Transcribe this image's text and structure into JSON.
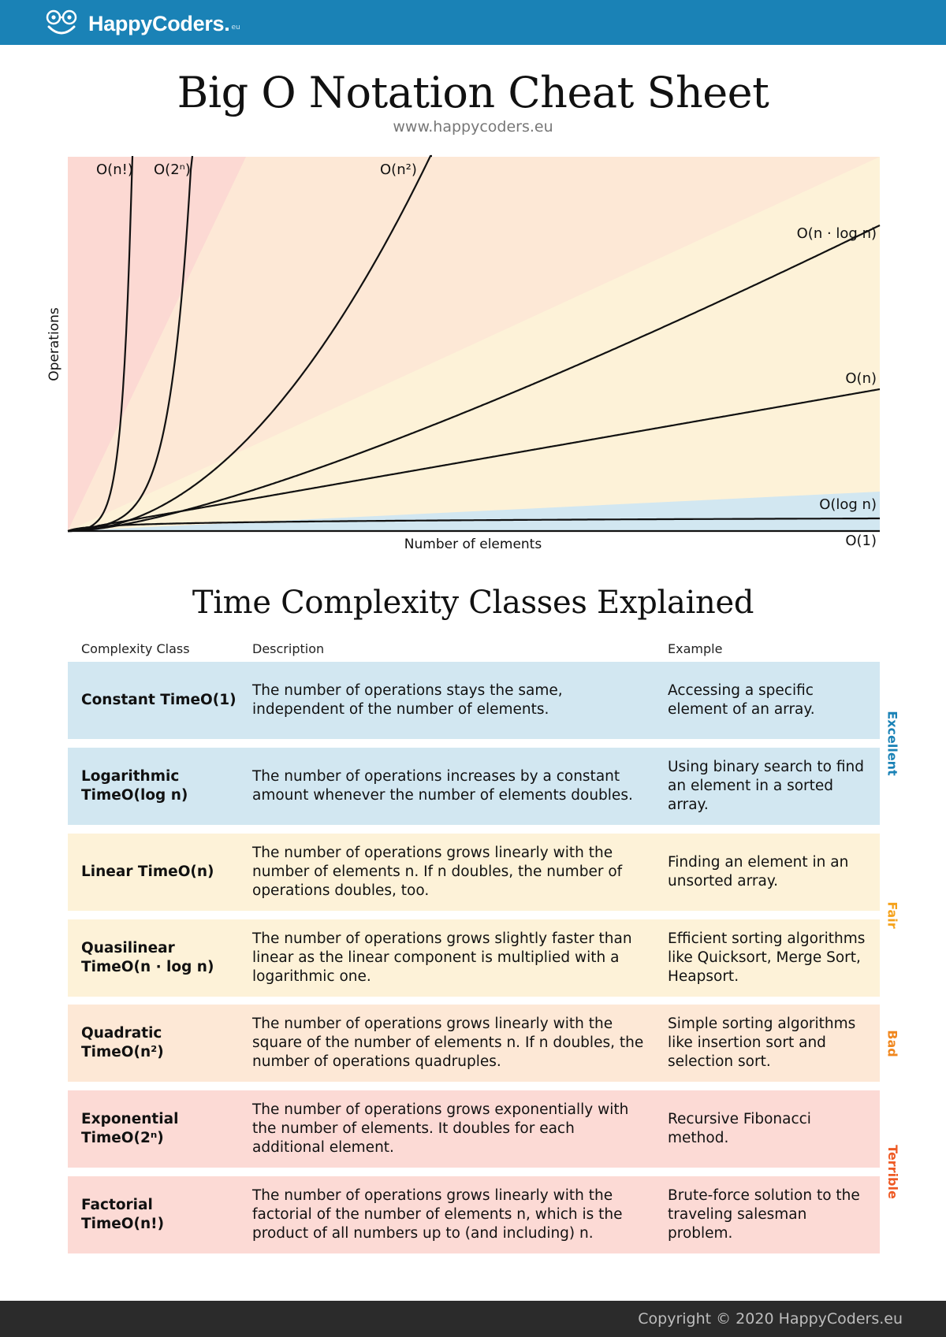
{
  "header": {
    "brand": "HappyCoders.",
    "brand_tld": "eu",
    "title": "Big O Notation Cheat Sheet",
    "url": "www.happycoders.eu"
  },
  "chart_data": {
    "type": "line",
    "xlabel": "Number of elements",
    "ylabel": "Operations",
    "grid": false,
    "legend": "curve labels at line ends",
    "series": [
      {
        "name": "O(n!)",
        "function": "factorial"
      },
      {
        "name": "O(2ⁿ)",
        "function": "exponential"
      },
      {
        "name": "O(n²)",
        "function": "quadratic"
      },
      {
        "name": "O(n · log n)",
        "function": "quasilinear"
      },
      {
        "name": "O(n)",
        "function": "linear"
      },
      {
        "name": "O(log n)",
        "function": "logarithmic"
      },
      {
        "name": "O(1)",
        "function": "constant"
      }
    ],
    "zones": [
      {
        "rating": "Terrible",
        "color": "#fcd9d3"
      },
      {
        "rating": "Bad",
        "color": "#fde8d6"
      },
      {
        "rating": "Fair",
        "color": "#fdf2d8"
      },
      {
        "rating": "Excellent",
        "color": "#d2e7f1"
      }
    ]
  },
  "table": {
    "title": "Time Complexity Classes Explained",
    "headers": {
      "class": "Complexity Class",
      "description": "Description",
      "example": "Example"
    },
    "rows": [
      {
        "name": "Constant Time",
        "notation": "O(1)",
        "description": "The number of operations stays the same, independent of the number of elements.",
        "example": "Accessing a specific element of an array.",
        "bg": "#d2e7f1"
      },
      {
        "name": "Logarithmic Time",
        "notation": "O(log n)",
        "description": "The number of operations increases by a constant amount whenever the number of elements doubles.",
        "example": "Using binary search to find an element in a sorted array.",
        "bg": "#d2e7f1"
      },
      {
        "name": "Linear Time",
        "notation": "O(n)",
        "description": "The number of operations grows linearly with the number of elements n. If n doubles, the number of operations doubles, too.",
        "example": "Finding an element in an unsorted array.",
        "bg": "#fdf2d8"
      },
      {
        "name": "Quasilinear Time",
        "notation": "O(n · log n)",
        "description": "The number of operations grows slightly faster than linear as the linear component is multiplied with a logarithmic one.",
        "example": "Efficient sorting algorithms like Quicksort, Merge Sort, Heapsort.",
        "bg": "#fdf2d8"
      },
      {
        "name": "Quadratic Time",
        "notation": "O(n²)",
        "description": "The number of operations grows linearly with the square of the number of elements n. If n doubles, the number of operations quadruples.",
        "example": "Simple sorting algorithms like insertion sort and selection sort.",
        "bg": "#fde8d6"
      },
      {
        "name": "Exponential Time",
        "notation": "O(2ⁿ)",
        "description": "The number of operations grows exponentially with the number of elements. It doubles for each additional element.",
        "example": "Recursive Fibonacci method.",
        "bg": "#fcdad5"
      },
      {
        "name": "Factorial Time",
        "notation": "O(n!)",
        "description": "The number of operations grows linearly with the factorial of the number of elements n, which is the product of all numbers up to (and including) n.",
        "example": "Brute-force solution to the traveling salesman problem.",
        "bg": "#fcdad5"
      }
    ],
    "ratings": [
      {
        "label": "Excellent",
        "color": "#1a82b6"
      },
      {
        "label": "Fair",
        "color": "#f5a21b"
      },
      {
        "label": "Bad",
        "color": "#f0871e"
      },
      {
        "label": "Terrible",
        "color": "#ee5a24"
      }
    ]
  },
  "footer": {
    "copyright": "Copyright © 2020 HappyCoders.eu"
  }
}
